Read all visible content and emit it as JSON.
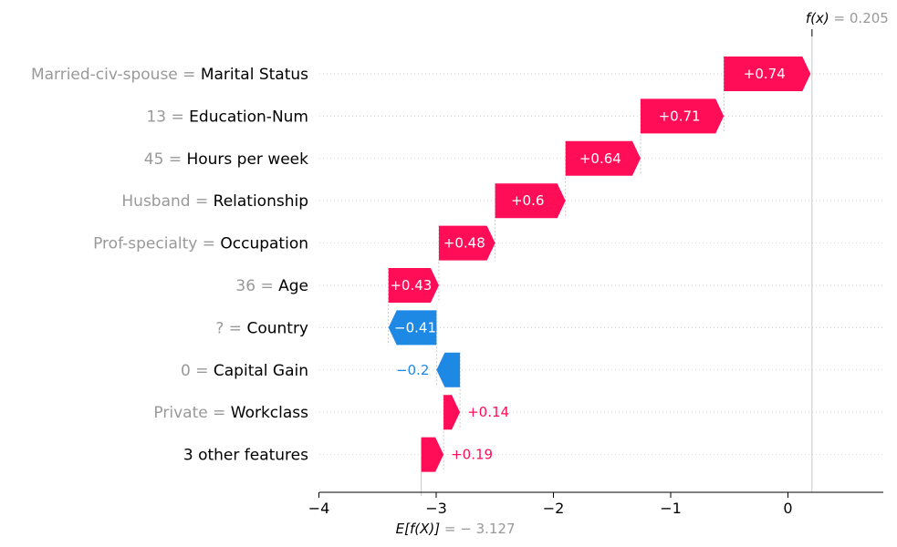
{
  "chart_data": {
    "type": "waterfall",
    "base_value": -3.127,
    "base_value_label": "= − 3.127",
    "base_label_prefix": "E[f(X)]",
    "fx_value": 0.205,
    "fx_label": "= 0.205",
    "fx_label_prefix": "f(x)",
    "xlim": [
      -4,
      0.8
    ],
    "ticks": [
      {
        "value": -4,
        "label": "−4"
      },
      {
        "value": -3,
        "label": "−3"
      },
      {
        "value": -2,
        "label": "−2"
      },
      {
        "value": -1,
        "label": "−1"
      },
      {
        "value": 0,
        "label": "0"
      }
    ],
    "colors": {
      "positive": "#ff0d57",
      "negative": "#1e88e5",
      "gray": "#999999"
    },
    "features": [
      {
        "value_text": "Married-civ-spouse =",
        "name": "Marital Status",
        "contribution": 0.74,
        "label": "+0.74"
      },
      {
        "value_text": "13 =",
        "name": "Education-Num",
        "contribution": 0.71,
        "label": "+0.71"
      },
      {
        "value_text": "45 =",
        "name": "Hours per week",
        "contribution": 0.64,
        "label": "+0.64"
      },
      {
        "value_text": "Husband =",
        "name": "Relationship",
        "contribution": 0.6,
        "label": "+0.6"
      },
      {
        "value_text": "Prof-specialty =",
        "name": "Occupation",
        "contribution": 0.48,
        "label": "+0.48"
      },
      {
        "value_text": "36 =",
        "name": "Age",
        "contribution": 0.43,
        "label": "+0.43"
      },
      {
        "value_text": "? =",
        "name": "Country",
        "contribution": -0.41,
        "label": "−0.41"
      },
      {
        "value_text": "0 =",
        "name": "Capital Gain",
        "contribution": -0.2,
        "label": "−0.2"
      },
      {
        "value_text": "Private =",
        "name": "Workclass",
        "contribution": 0.14,
        "label": "+0.14"
      },
      {
        "value_text": "",
        "name": "3 other features",
        "contribution": 0.19,
        "label": "+0.19"
      }
    ]
  }
}
